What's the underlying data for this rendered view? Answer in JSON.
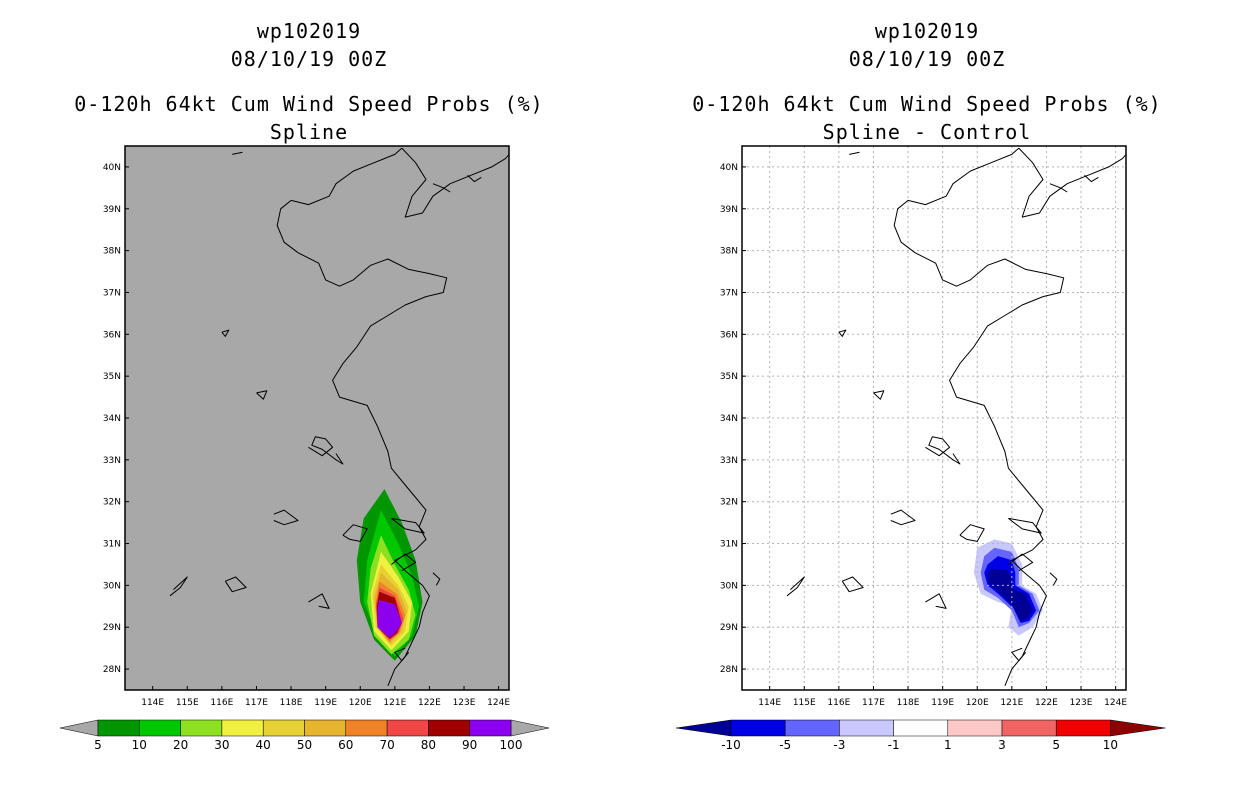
{
  "colors": {
    "left_background": "#a8a8a8",
    "right_background": "#ffffff",
    "coast": "#000000"
  },
  "chart_data": [
    {
      "type": "heatmap",
      "title_lines": [
        "wp102019",
        "08/10/19 00Z",
        "0-120h 64kt Cum Wind Speed Probs (%)",
        "Spline"
      ],
      "x_ticks": [
        "114E",
        "115E",
        "116E",
        "117E",
        "118E",
        "119E",
        "120E",
        "121E",
        "122E",
        "123E",
        "124E"
      ],
      "y_ticks": [
        "40N",
        "39N",
        "38N",
        "37N",
        "36N",
        "35N",
        "34N",
        "33N",
        "32N",
        "31N",
        "30N",
        "29N",
        "28N"
      ],
      "xlim": [
        113.2,
        124.3
      ],
      "ylim": [
        27.5,
        40.5
      ],
      "colorbar": {
        "boundaries": [
          "5",
          "10",
          "20",
          "30",
          "40",
          "50",
          "60",
          "70",
          "80",
          "90",
          "100"
        ],
        "colors": [
          "#009600",
          "#00c800",
          "#8ce020",
          "#f0f040",
          "#e6d232",
          "#e6b42e",
          "#f08228",
          "#f04646",
          "#a00000",
          "#8c00f0"
        ],
        "below_color": "#a8a8a8",
        "above_color": "#a8a8a8"
      },
      "fields": [
        {
          "level": "5",
          "color": "#009600",
          "polygon": [
            [
              120.7,
              32.3
            ],
            [
              121.2,
              31.5
            ],
            [
              121.6,
              30.6
            ],
            [
              121.8,
              29.6
            ],
            [
              121.6,
              28.8
            ],
            [
              121.0,
              28.2
            ],
            [
              120.4,
              28.7
            ],
            [
              120.0,
              29.6
            ],
            [
              119.9,
              30.6
            ],
            [
              120.1,
              31.6
            ]
          ]
        },
        {
          "level": "10",
          "color": "#00c800",
          "polygon": [
            [
              120.6,
              31.8
            ],
            [
              121.1,
              31.0
            ],
            [
              121.5,
              30.2
            ],
            [
              121.7,
              29.5
            ],
            [
              121.5,
              28.8
            ],
            [
              121.0,
              28.3
            ],
            [
              120.5,
              28.8
            ],
            [
              120.1,
              29.6
            ],
            [
              120.2,
              30.6
            ]
          ]
        },
        {
          "level": "20",
          "color": "#8ce020",
          "polygon": [
            [
              120.6,
              31.2
            ],
            [
              121.0,
              30.5
            ],
            [
              121.4,
              29.9
            ],
            [
              121.6,
              29.3
            ],
            [
              121.4,
              28.7
            ],
            [
              120.9,
              28.35
            ],
            [
              120.4,
              28.8
            ],
            [
              120.2,
              29.6
            ],
            [
              120.3,
              30.4
            ]
          ]
        },
        {
          "level": "30",
          "color": "#f0f040",
          "polygon": [
            [
              120.6,
              30.8
            ],
            [
              121.1,
              30.2
            ],
            [
              121.5,
              29.6
            ],
            [
              121.4,
              28.9
            ],
            [
              120.9,
              28.45
            ],
            [
              120.4,
              28.9
            ],
            [
              120.3,
              29.8
            ]
          ]
        },
        {
          "level": "40",
          "color": "#e6d232",
          "polygon": [
            [
              120.6,
              30.5
            ],
            [
              121.1,
              30.0
            ],
            [
              121.4,
              29.5
            ],
            [
              121.3,
              28.9
            ],
            [
              120.9,
              28.55
            ],
            [
              120.45,
              29.0
            ],
            [
              120.35,
              29.8
            ]
          ]
        },
        {
          "level": "50",
          "color": "#e6b42e",
          "polygon": [
            [
              120.6,
              30.3
            ],
            [
              121.1,
              29.9
            ],
            [
              121.35,
              29.4
            ],
            [
              121.2,
              28.9
            ],
            [
              120.85,
              28.6
            ],
            [
              120.5,
              29.0
            ],
            [
              120.4,
              29.7
            ]
          ]
        },
        {
          "level": "60",
          "color": "#f08228",
          "polygon": [
            [
              120.55,
              30.1
            ],
            [
              121.05,
              29.8
            ],
            [
              121.3,
              29.3
            ],
            [
              121.15,
              28.9
            ],
            [
              120.85,
              28.65
            ],
            [
              120.5,
              29.0
            ],
            [
              120.45,
              29.6
            ]
          ]
        },
        {
          "level": "70",
          "color": "#f04646",
          "polygon": [
            [
              120.55,
              29.95
            ],
            [
              121.0,
              29.75
            ],
            [
              121.25,
              29.2
            ],
            [
              121.1,
              28.85
            ],
            [
              120.85,
              28.7
            ],
            [
              120.5,
              29.0
            ],
            [
              120.45,
              29.5
            ]
          ]
        },
        {
          "level": "80",
          "color": "#a00000",
          "polygon": [
            [
              120.55,
              29.85
            ],
            [
              121.0,
              29.7
            ],
            [
              121.2,
              29.1
            ],
            [
              121.05,
              28.85
            ],
            [
              120.85,
              28.72
            ],
            [
              120.5,
              29.0
            ],
            [
              120.48,
              29.5
            ]
          ]
        },
        {
          "level": "90",
          "color": "#8c00f0",
          "polygon": [
            [
              120.55,
              29.65
            ],
            [
              121.0,
              29.55
            ],
            [
              121.2,
              29.1
            ],
            [
              121.0,
              28.85
            ],
            [
              120.85,
              28.75
            ],
            [
              120.5,
              29.0
            ],
            [
              120.5,
              29.45
            ]
          ]
        }
      ]
    },
    {
      "type": "heatmap",
      "title_lines": [
        "wp102019",
        "08/10/19 00Z",
        "0-120h 64kt Cum Wind Speed Probs (%)",
        "Spline - Control"
      ],
      "x_ticks": [
        "114E",
        "115E",
        "116E",
        "117E",
        "118E",
        "119E",
        "120E",
        "121E",
        "122E",
        "123E",
        "124E"
      ],
      "y_ticks": [
        "40N",
        "39N",
        "38N",
        "37N",
        "36N",
        "35N",
        "34N",
        "33N",
        "32N",
        "31N",
        "30N",
        "29N",
        "28N"
      ],
      "xlim": [
        113.2,
        124.3
      ],
      "ylim": [
        27.5,
        40.5
      ],
      "colorbar": {
        "boundaries": [
          "-10",
          "-5",
          "-3",
          "-1",
          "1",
          "3",
          "5",
          "10"
        ],
        "colors": [
          "#0000e6",
          "#6464ff",
          "#c8c8ff",
          "#ffffff",
          "#ffc8c8",
          "#f06464",
          "#f00000"
        ],
        "below_color": "#000096",
        "above_color": "#8c0000"
      },
      "fields": [
        {
          "level": "-1",
          "color": "#c8c8ff",
          "polygon": [
            [
              120.0,
              30.9
            ],
            [
              120.5,
              31.1
            ],
            [
              121.0,
              31.0
            ],
            [
              121.3,
              30.5
            ],
            [
              121.3,
              30.0
            ],
            [
              121.7,
              29.8
            ],
            [
              121.9,
              29.4
            ],
            [
              121.6,
              29.0
            ],
            [
              121.2,
              28.8
            ],
            [
              120.9,
              29.0
            ],
            [
              121.0,
              29.5
            ],
            [
              120.6,
              29.6
            ],
            [
              120.1,
              29.8
            ],
            [
              119.9,
              30.3
            ]
          ]
        },
        {
          "level": "-3",
          "color": "#6464ff",
          "polygon": [
            [
              120.2,
              30.7
            ],
            [
              120.5,
              30.9
            ],
            [
              121.0,
              30.8
            ],
            [
              121.2,
              30.4
            ],
            [
              121.2,
              30.0
            ],
            [
              121.6,
              29.8
            ],
            [
              121.8,
              29.4
            ],
            [
              121.5,
              29.1
            ],
            [
              121.2,
              29.0
            ],
            [
              121.0,
              29.4
            ],
            [
              120.6,
              29.7
            ],
            [
              120.2,
              29.9
            ],
            [
              120.1,
              30.3
            ]
          ]
        },
        {
          "level": "-5",
          "color": "#0000e6",
          "polygon": [
            [
              120.3,
              30.5
            ],
            [
              120.6,
              30.7
            ],
            [
              121.0,
              30.6
            ],
            [
              121.1,
              30.3
            ],
            [
              121.1,
              30.0
            ],
            [
              121.5,
              29.8
            ],
            [
              121.7,
              29.4
            ],
            [
              121.5,
              29.15
            ],
            [
              121.25,
              29.1
            ],
            [
              121.05,
              29.45
            ],
            [
              120.6,
              29.8
            ],
            [
              120.3,
              30.0
            ],
            [
              120.2,
              30.3
            ]
          ]
        },
        {
          "level": "-10",
          "color": "#000096",
          "polygon": [
            [
              120.4,
              30.4
            ],
            [
              120.9,
              30.35
            ],
            [
              121.0,
              30.1
            ],
            [
              121.05,
              29.9
            ],
            [
              121.4,
              29.8
            ],
            [
              121.6,
              29.4
            ],
            [
              121.45,
              29.2
            ],
            [
              121.25,
              29.15
            ],
            [
              121.0,
              29.55
            ],
            [
              120.6,
              29.85
            ],
            [
              120.35,
              30.0
            ],
            [
              120.3,
              30.25
            ]
          ]
        }
      ]
    }
  ]
}
